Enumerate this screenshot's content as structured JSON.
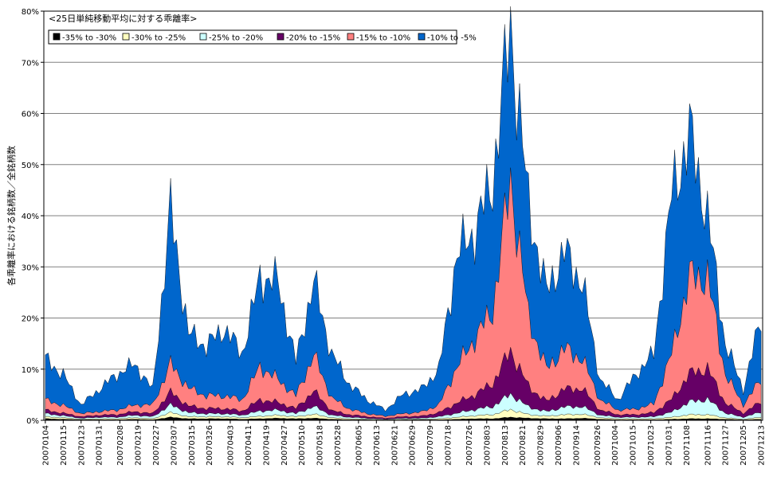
{
  "chart_data": {
    "type": "area",
    "stacked": true,
    "title": "<25日単純移動平均に対する乖離率>",
    "ylabel": "各乖離率における銘柄数／全銘柄数",
    "xlabel": "",
    "ylim": [
      0,
      80
    ],
    "yticks": [
      "0%",
      "10%",
      "20%",
      "30%",
      "40%",
      "50%",
      "60%",
      "70%",
      "80%"
    ],
    "grid": true,
    "legend_position": "top-left",
    "x_tick_labels": [
      "20070104",
      "20070115",
      "20070123",
      "20070131",
      "20070208",
      "20070219",
      "20070227",
      "20070307",
      "20070315",
      "20070326",
      "20070403",
      "20070411",
      "20070419",
      "20070427",
      "20070510",
      "20070518",
      "20070528",
      "20070605",
      "20070613",
      "20070621",
      "20070629",
      "20070709",
      "20070718",
      "20070726",
      "20070803",
      "20070813",
      "20070821",
      "20070829",
      "20070906",
      "20070914",
      "20070926",
      "20071004",
      "20071015",
      "20071023",
      "20071031",
      "20071108",
      "20071116",
      "20071127",
      "20071205",
      "20071213"
    ],
    "keypoints": [
      0,
      6,
      12,
      18,
      24,
      30,
      36,
      42,
      48,
      54,
      60,
      66,
      72,
      78,
      84,
      90,
      96,
      102,
      108,
      114,
      120,
      126,
      132,
      138,
      144,
      150,
      156,
      162,
      168,
      174,
      180,
      186,
      192,
      198,
      204,
      210,
      216,
      222,
      228,
      234,
      240
    ],
    "n_points": 241,
    "series": [
      {
        "name": "-35% to -30%",
        "color": "#000000",
        "values": [
          0.3,
          0.2,
          0.1,
          0.1,
          0.1,
          0.2,
          0.1,
          0.6,
          0.3,
          0.3,
          0.3,
          0.2,
          0.3,
          0.4,
          0.3,
          0.4,
          0.2,
          0.1,
          0.1,
          0.0,
          0.1,
          0.1,
          0.1,
          0.2,
          0.3,
          0.3,
          0.6,
          0.4,
          0.3,
          0.3,
          0.4,
          0.2,
          0.1,
          0.1,
          0.1,
          0.2,
          0.3,
          0.3,
          0.2,
          0.1,
          0.2
        ]
      },
      {
        "name": "-30% to -25%",
        "color": "#FFFFC0",
        "values": [
          0.4,
          0.3,
          0.1,
          0.2,
          0.2,
          0.3,
          0.2,
          0.9,
          0.4,
          0.4,
          0.4,
          0.3,
          0.5,
          0.6,
          0.4,
          0.8,
          0.3,
          0.2,
          0.1,
          0.1,
          0.1,
          0.1,
          0.2,
          0.4,
          0.6,
          0.8,
          1.5,
          0.7,
          0.5,
          0.8,
          0.8,
          0.3,
          0.2,
          0.2,
          0.2,
          0.4,
          0.8,
          0.8,
          0.3,
          0.1,
          0.4
        ]
      },
      {
        "name": "-25% to -20%",
        "color": "#CCFFFF",
        "values": [
          0.6,
          0.4,
          0.2,
          0.3,
          0.3,
          0.5,
          0.4,
          1.5,
          0.8,
          0.6,
          0.6,
          0.5,
          1.0,
          1.0,
          0.6,
          1.5,
          0.5,
          0.3,
          0.2,
          0.1,
          0.2,
          0.2,
          0.4,
          0.8,
          1.2,
          1.6,
          3.0,
          1.5,
          0.9,
          1.5,
          1.5,
          0.5,
          0.3,
          0.3,
          0.4,
          1.0,
          2.5,
          3.0,
          0.9,
          0.4,
          1.0
        ]
      },
      {
        "name": "-20% to -15%",
        "color": "#660066",
        "values": [
          0.7,
          0.5,
          0.3,
          0.4,
          0.5,
          0.7,
          0.6,
          2.5,
          1.3,
          1.0,
          1.0,
          0.8,
          2.2,
          1.5,
          1.0,
          3.0,
          0.9,
          0.5,
          0.3,
          0.2,
          0.3,
          0.4,
          0.8,
          2.0,
          2.9,
          4.5,
          8.5,
          4.0,
          2.0,
          3.5,
          3.5,
          1.0,
          0.5,
          0.5,
          0.8,
          2.5,
          5.5,
          6.0,
          2.0,
          0.8,
          2.0
        ]
      },
      {
        "name": "-15% to -10%",
        "color": "#FF8080",
        "values": [
          2.0,
          1.5,
          0.6,
          0.7,
          0.9,
          1.3,
          1.7,
          5.5,
          3.5,
          2.5,
          2.5,
          2.2,
          6.5,
          4.5,
          2.5,
          7.0,
          2.5,
          1.1,
          0.6,
          0.4,
          0.6,
          0.8,
          1.5,
          7.0,
          11.0,
          14.3,
          33.4,
          13.4,
          6.3,
          7.9,
          5.8,
          2.0,
          0.9,
          1.1,
          1.7,
          8.9,
          18.9,
          17.9,
          5.6,
          1.6,
          4.4
        ]
      },
      {
        "name": "-10% to -5%",
        "color": "#0066CC",
        "values": [
          8.0,
          6.0,
          1.7,
          4.3,
          7.0,
          8.0,
          3.0,
          30.0,
          10.7,
          9.7,
          13.2,
          9.0,
          17.5,
          19.0,
          6.7,
          14.5,
          8.6,
          4.8,
          2.7,
          1.2,
          3.8,
          4.4,
          7.0,
          22.0,
          21.0,
          25.5,
          30.0,
          22.0,
          15.0,
          19.0,
          15.0,
          4.0,
          2.0,
          6.8,
          9.8,
          31.0,
          28.0,
          12.0,
          6.0,
          3.0,
          12.0
        ]
      }
    ]
  }
}
